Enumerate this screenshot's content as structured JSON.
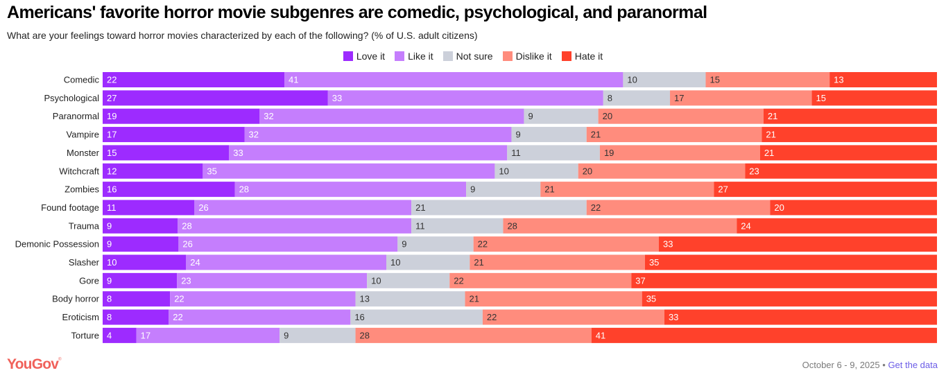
{
  "header": {
    "title": "Americans' favorite horror movie subgenres are comedic, psychological, and paranormal",
    "subtitle": "What are your feelings toward horror movies characterized by each of the following? (% of U.S. adult citizens)"
  },
  "footer": {
    "logo": "YouGov",
    "date": "October 6 - 9, 2025",
    "separator": "•",
    "link": "Get the data"
  },
  "chart_data": {
    "type": "bar",
    "orientation": "horizontal",
    "stacked": true,
    "title": "Americans' favorite horror movie subgenres are comedic, psychological, and paranormal",
    "subtitle": "What are your feelings toward horror movies characterized by each of the following? (% of U.S. adult citizens)",
    "xlabel": "",
    "ylabel": "",
    "legend_position": "top-center",
    "grid": false,
    "categories": [
      "Comedic",
      "Psychological",
      "Paranormal",
      "Vampire",
      "Monster",
      "Witchcraft",
      "Zombies",
      "Found footage",
      "Trauma",
      "Demonic Possession",
      "Slasher",
      "Gore",
      "Body horror",
      "Eroticism",
      "Torture"
    ],
    "series": [
      {
        "name": "Love it",
        "color": "#9d2bff",
        "label_color": "#ffffff",
        "values": [
          22,
          27,
          19,
          17,
          15,
          12,
          16,
          11,
          9,
          9,
          10,
          9,
          8,
          8,
          4
        ]
      },
      {
        "name": "Like it",
        "color": "#c57efd",
        "label_color": "#ffffff",
        "values": [
          41,
          33,
          32,
          32,
          33,
          35,
          28,
          26,
          28,
          26,
          24,
          23,
          22,
          22,
          17
        ]
      },
      {
        "name": "Not sure",
        "color": "#ccd0da",
        "label_color": "#333333",
        "values": [
          10,
          8,
          9,
          9,
          11,
          10,
          9,
          21,
          11,
          9,
          10,
          10,
          13,
          16,
          9
        ]
      },
      {
        "name": "Dislike it",
        "color": "#ff8c7d",
        "label_color": "#333333",
        "values": [
          15,
          17,
          20,
          21,
          19,
          20,
          21,
          22,
          28,
          22,
          21,
          22,
          21,
          22,
          28
        ]
      },
      {
        "name": "Hate it",
        "color": "#ff412b",
        "label_color": "#ffffff",
        "values": [
          13,
          15,
          21,
          21,
          21,
          23,
          27,
          20,
          24,
          33,
          35,
          37,
          35,
          33,
          41
        ]
      }
    ]
  }
}
